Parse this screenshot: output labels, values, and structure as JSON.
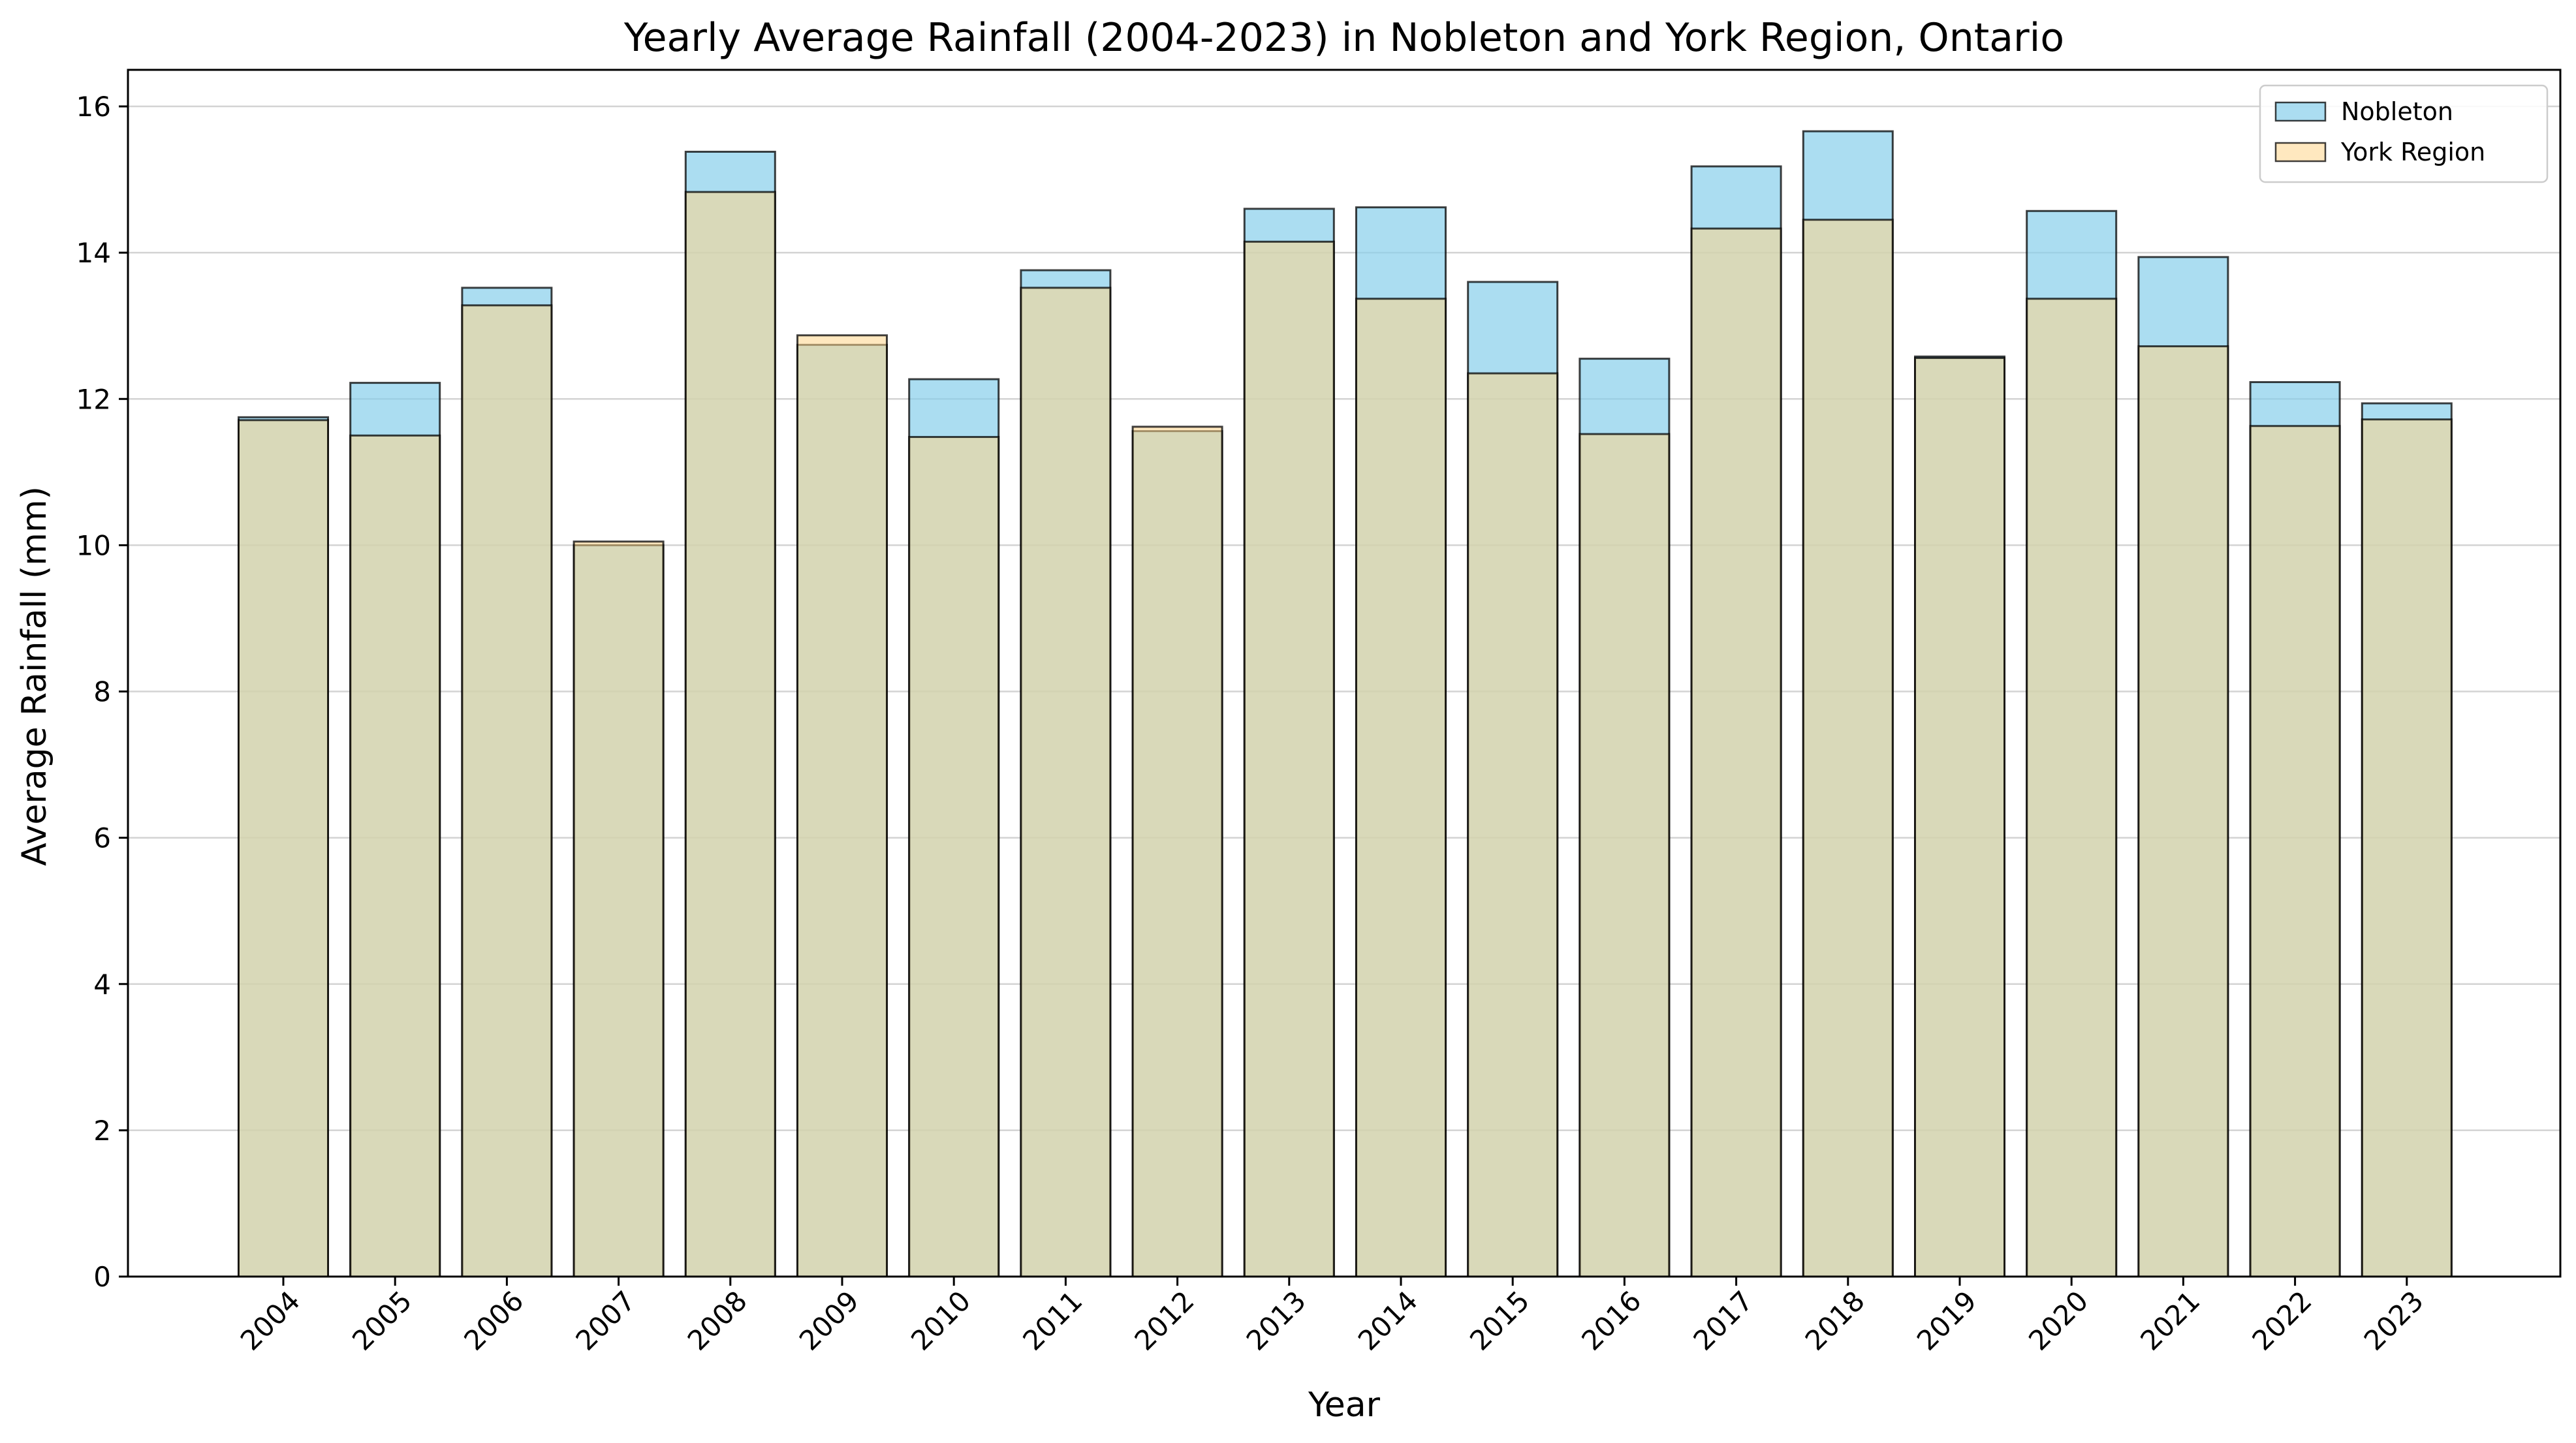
{
  "chart_data": {
    "type": "bar",
    "title": "Yearly Average Rainfall (2004-2023) in Nobleton and York Region, Ontario",
    "xlabel": "Year",
    "ylabel": "Average Rainfall (mm)",
    "ylim": [
      0,
      16.5
    ],
    "yticks": [
      0,
      2,
      4,
      6,
      8,
      10,
      12,
      14,
      16
    ],
    "grid": "horizontal",
    "legend_position": "top-right",
    "categories": [
      "2004",
      "2005",
      "2006",
      "2007",
      "2008",
      "2009",
      "2010",
      "2011",
      "2012",
      "2013",
      "2014",
      "2015",
      "2016",
      "2017",
      "2018",
      "2019",
      "2020",
      "2021",
      "2022",
      "2023"
    ],
    "series": [
      {
        "name": "Nobleton",
        "color": "#87ceeb",
        "opacity": 0.7,
        "values": [
          11.75,
          12.22,
          13.52,
          10.0,
          15.38,
          12.74,
          12.27,
          13.76,
          11.56,
          14.6,
          14.62,
          13.6,
          12.55,
          15.18,
          15.66,
          12.58,
          14.57,
          13.94,
          12.23,
          11.94
        ]
      },
      {
        "name": "York Region",
        "color": "#ffd58a",
        "opacity": 0.55,
        "values": [
          11.71,
          11.5,
          13.28,
          10.05,
          14.83,
          12.87,
          11.48,
          13.52,
          11.62,
          14.15,
          13.37,
          12.35,
          11.52,
          14.33,
          14.45,
          12.56,
          13.37,
          12.72,
          11.63,
          11.72
        ]
      }
    ]
  }
}
